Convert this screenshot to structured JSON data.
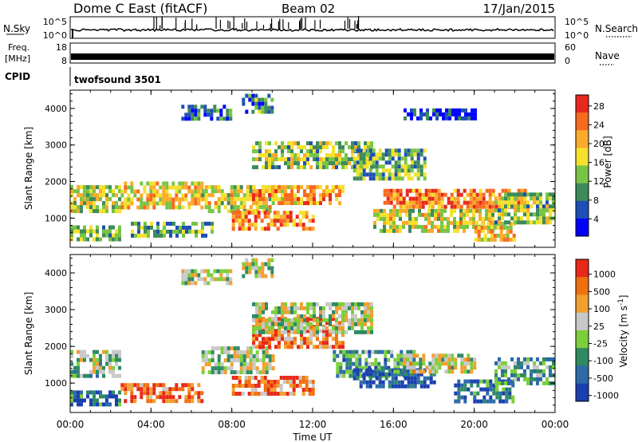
{
  "header": {
    "station": "Dome C East (fitACF)",
    "beam": "Beam 02",
    "date": "17/Jan/2015"
  },
  "summary_panels": {
    "nsky": {
      "label": "N.Sky",
      "right_label": "N.Search",
      "left_ticks": [
        "10^5",
        "10^0"
      ],
      "right_ticks": [
        "10^5",
        "10^0"
      ]
    },
    "freq": {
      "label_line1": "Freq.",
      "label_line2": "[MHz]",
      "right_label": "Nave",
      "left_ticks": [
        "18",
        "8"
      ],
      "right_ticks": [
        "60",
        "0"
      ]
    },
    "cpid": {
      "label": "CPID",
      "value": "twofsound 3501"
    }
  },
  "chart_data": [
    {
      "type": "heatmap",
      "title": "Power",
      "ylabel": "Slant Range [km]",
      "xlabel": "",
      "x_range_hours": [
        0,
        24
      ],
      "ylim": [
        200,
        4500
      ],
      "x_ticks": [
        "00:00",
        "04:00",
        "08:00",
        "12:00",
        "16:00",
        "20:00",
        "00:00"
      ],
      "y_ticks": [
        "1000",
        "2000",
        "3000",
        "4000"
      ],
      "colorbar": {
        "label": "Power [dB]",
        "ticks": [
          "4",
          "8",
          "12",
          "16",
          "20",
          "24",
          "28"
        ],
        "range": [
          0,
          30
        ],
        "colors": [
          "#0000ff",
          "#1d4fb5",
          "#3e8a5a",
          "#78c445",
          "#f4e12c",
          "#fcaa2a",
          "#f86a1e",
          "#e8281c"
        ]
      },
      "regions": [
        {
          "t": [
            0.0,
            2.5
          ],
          "r": [
            1200,
            1900
          ],
          "level": 0.5
        },
        {
          "t": [
            0.0,
            2.5
          ],
          "r": [
            450,
            800
          ],
          "level": 0.4
        },
        {
          "t": [
            2.5,
            6.5
          ],
          "r": [
            1300,
            2000
          ],
          "level": 0.6
        },
        {
          "t": [
            3.0,
            7.0
          ],
          "r": [
            500,
            900
          ],
          "level": 0.35
        },
        {
          "t": [
            6.5,
            10.0
          ],
          "r": [
            1200,
            1900
          ],
          "level": 0.55
        },
        {
          "t": [
            8.0,
            12.0
          ],
          "r": [
            700,
            1200
          ],
          "level": 0.75
        },
        {
          "t": [
            9.0,
            13.5
          ],
          "r": [
            1400,
            1900
          ],
          "level": 0.7
        },
        {
          "t": [
            9.0,
            15.0
          ],
          "r": [
            2400,
            3100
          ],
          "level": 0.45
        },
        {
          "t": [
            8.5,
            10.0
          ],
          "r": [
            3900,
            4400
          ],
          "level": 0.3
        },
        {
          "t": [
            5.5,
            8.0
          ],
          "r": [
            3700,
            4100
          ],
          "level": 0.2
        },
        {
          "t": [
            14.0,
            17.5
          ],
          "r": [
            2100,
            2900
          ],
          "level": 0.4
        },
        {
          "t": [
            15.5,
            22.5
          ],
          "r": [
            1300,
            1800
          ],
          "level": 0.8
        },
        {
          "t": [
            15.0,
            21.0
          ],
          "r": [
            700,
            1250
          ],
          "level": 0.55
        },
        {
          "t": [
            20.0,
            22.0
          ],
          "r": [
            450,
            900
          ],
          "level": 0.6
        },
        {
          "t": [
            21.0,
            24.0
          ],
          "r": [
            900,
            1700
          ],
          "level": 0.45
        },
        {
          "t": [
            16.5,
            20.0
          ],
          "r": [
            3700,
            4000
          ],
          "level": 0.15
        }
      ]
    },
    {
      "type": "heatmap",
      "title": "Velocity",
      "ylabel": "Slant Range [km]",
      "xlabel": "Time UT",
      "x_range_hours": [
        0,
        24
      ],
      "ylim": [
        200,
        4500
      ],
      "x_ticks": [
        "00:00",
        "04:00",
        "08:00",
        "12:00",
        "16:00",
        "20:00",
        "00:00"
      ],
      "y_ticks": [
        "1000",
        "2000",
        "3000",
        "4000"
      ],
      "colorbar": {
        "label": "Velocity [m s^-1]",
        "ticks": [
          "1000",
          "500",
          "100",
          "25",
          "-25",
          "-100",
          "-500",
          "-1000"
        ],
        "colors": [
          "#1a3fb0",
          "#2c6aa8",
          "#2f8a64",
          "#7ccf3a",
          "#c8c8c8",
          "#f0a030",
          "#f07010",
          "#e82818"
        ]
      },
      "regions": [
        {
          "t": [
            0.0,
            2.5
          ],
          "r": [
            1200,
            1900
          ],
          "level": 0.45
        },
        {
          "t": [
            0.0,
            2.5
          ],
          "r": [
            450,
            800
          ],
          "level": 0.2
        },
        {
          "t": [
            2.5,
            6.5
          ],
          "r": [
            500,
            1000
          ],
          "level": 0.82
        },
        {
          "t": [
            6.5,
            10.0
          ],
          "r": [
            1300,
            2000
          ],
          "level": 0.5
        },
        {
          "t": [
            8.0,
            12.0
          ],
          "r": [
            700,
            1200
          ],
          "level": 0.8
        },
        {
          "t": [
            9.0,
            13.5
          ],
          "r": [
            2000,
            2800
          ],
          "level": 0.78
        },
        {
          "t": [
            9.0,
            15.0
          ],
          "r": [
            2400,
            3200
          ],
          "level": 0.5
        },
        {
          "t": [
            13.0,
            17.0
          ],
          "r": [
            1200,
            1900
          ],
          "level": 0.3
        },
        {
          "t": [
            14.0,
            18.0
          ],
          "r": [
            900,
            1400
          ],
          "level": 0.12
        },
        {
          "t": [
            16.0,
            20.0
          ],
          "r": [
            1300,
            1800
          ],
          "level": 0.55
        },
        {
          "t": [
            19.0,
            22.0
          ],
          "r": [
            500,
            1100
          ],
          "level": 0.22
        },
        {
          "t": [
            21.0,
            24.0
          ],
          "r": [
            1000,
            1700
          ],
          "level": 0.35
        },
        {
          "t": [
            5.5,
            8.0
          ],
          "r": [
            3700,
            4100
          ],
          "level": 0.5
        },
        {
          "t": [
            8.5,
            10.0
          ],
          "r": [
            3900,
            4400
          ],
          "level": 0.5
        }
      ]
    }
  ]
}
